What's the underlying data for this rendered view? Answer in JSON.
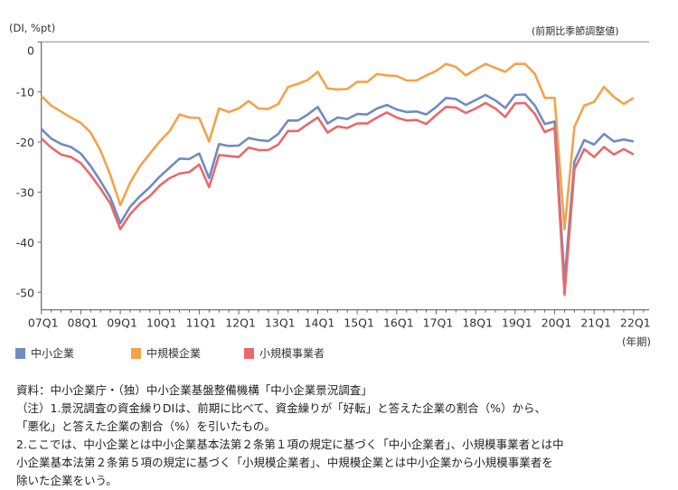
{
  "chart_data": {
    "type": "line",
    "ylabel": "(DI, %pt)",
    "note_top_right": "(前期比季節調整値)",
    "xunit": "(年期)",
    "ylim": [
      -53.5,
      0
    ],
    "yticks": [
      0,
      -10,
      -20,
      -30,
      -40,
      -50
    ],
    "ytick_labels": [
      "0",
      "-10",
      "-20",
      "-30",
      "-40",
      "-50"
    ],
    "xtick_labels": [
      "07Q1",
      "08Q1",
      "09Q1",
      "10Q1",
      "11Q1",
      "12Q1",
      "13Q1",
      "14Q1",
      "15Q1",
      "16Q1",
      "17Q1",
      "18Q1",
      "19Q1",
      "20Q1",
      "21Q1",
      "22Q1"
    ],
    "x_start": "07Q1",
    "grid": false,
    "legend_position": "bottom-left",
    "series": [
      {
        "name": "中小企業",
        "color": "#6f8cc0",
        "values": [
          -17.4,
          -19.3,
          -20.4,
          -21.0,
          -22.3,
          -24.8,
          -27.8,
          -31.1,
          -36.2,
          -32.9,
          -30.8,
          -29.0,
          -26.9,
          -25.1,
          -23.3,
          -23.4,
          -22.3,
          -27.2,
          -20.4,
          -20.8,
          -20.7,
          -19.2,
          -19.6,
          -19.8,
          -18.4,
          -15.7,
          -15.7,
          -14.5,
          -13.0,
          -16.3,
          -15.1,
          -15.4,
          -14.4,
          -14.5,
          -13.3,
          -12.6,
          -13.5,
          -14.0,
          -13.9,
          -14.5,
          -13.0,
          -11.2,
          -11.4,
          -12.6,
          -11.6,
          -10.6,
          -11.7,
          -13.2,
          -10.6,
          -10.5,
          -12.7,
          -16.4,
          -15.9,
          -47.7,
          -23.9,
          -19.6,
          -20.5,
          -18.4,
          -19.9,
          -19.5,
          -19.9
        ]
      },
      {
        "name": "中規模企業",
        "color": "#f4a24a",
        "values": [
          -10.8,
          -12.7,
          -13.9,
          -15.1,
          -16.2,
          -18.1,
          -21.7,
          -26.6,
          -32.6,
          -28.1,
          -24.8,
          -22.3,
          -19.9,
          -17.8,
          -14.5,
          -15.1,
          -15.2,
          -19.9,
          -13.3,
          -14.0,
          -13.3,
          -11.8,
          -13.3,
          -13.4,
          -12.4,
          -9.0,
          -8.4,
          -7.6,
          -6.0,
          -9.3,
          -9.5,
          -9.4,
          -8.0,
          -8.0,
          -6.4,
          -6.7,
          -6.8,
          -7.7,
          -7.7,
          -6.7,
          -5.8,
          -4.4,
          -5.0,
          -6.7,
          -5.5,
          -4.4,
          -5.2,
          -6.0,
          -4.4,
          -4.4,
          -6.4,
          -11.2,
          -11.2,
          -37.4,
          -17.0,
          -12.7,
          -12.0,
          -9.0,
          -11.0,
          -12.4,
          -11.2
        ]
      },
      {
        "name": "小規模事業者",
        "color": "#e8696a",
        "values": [
          -19.3,
          -21.1,
          -22.5,
          -23.0,
          -24.2,
          -26.6,
          -29.3,
          -32.3,
          -37.4,
          -34.4,
          -32.3,
          -30.8,
          -28.7,
          -27.2,
          -26.3,
          -26.0,
          -24.5,
          -29.0,
          -22.6,
          -22.8,
          -23.0,
          -21.1,
          -21.6,
          -21.6,
          -20.5,
          -17.8,
          -17.8,
          -16.4,
          -15.1,
          -18.1,
          -16.9,
          -17.2,
          -16.3,
          -16.3,
          -15.1,
          -14.1,
          -15.1,
          -15.7,
          -15.6,
          -16.4,
          -14.6,
          -13.0,
          -13.1,
          -14.2,
          -13.3,
          -12.2,
          -13.3,
          -15.0,
          -12.3,
          -12.2,
          -14.4,
          -18.0,
          -17.2,
          -50.5,
          -25.4,
          -21.4,
          -23.0,
          -21.0,
          -22.5,
          -21.4,
          -22.5
        ]
      }
    ]
  },
  "notes": [
    "資料：中小企業庁・（独）中小企業基盤整備機構「中小企業景況調査」",
    "（注）1.景況調査の資金繰りDIは、前期に比べて、資金繰りが「好転」と答えた企業の割合（%）から、",
    "「悪化」と答えた企業の割合（%）を引いたもの。",
    "2.ここでは、中小企業とは中小企業基本法第２条第１項の規定に基づく「中小企業者」、小規模事業者とは中",
    "小企業基本法第２条第５項の規定に基づく「小規模企業者」、中規模企業とは中小企業から小規模事業者を",
    "除いた企業をいう。"
  ]
}
